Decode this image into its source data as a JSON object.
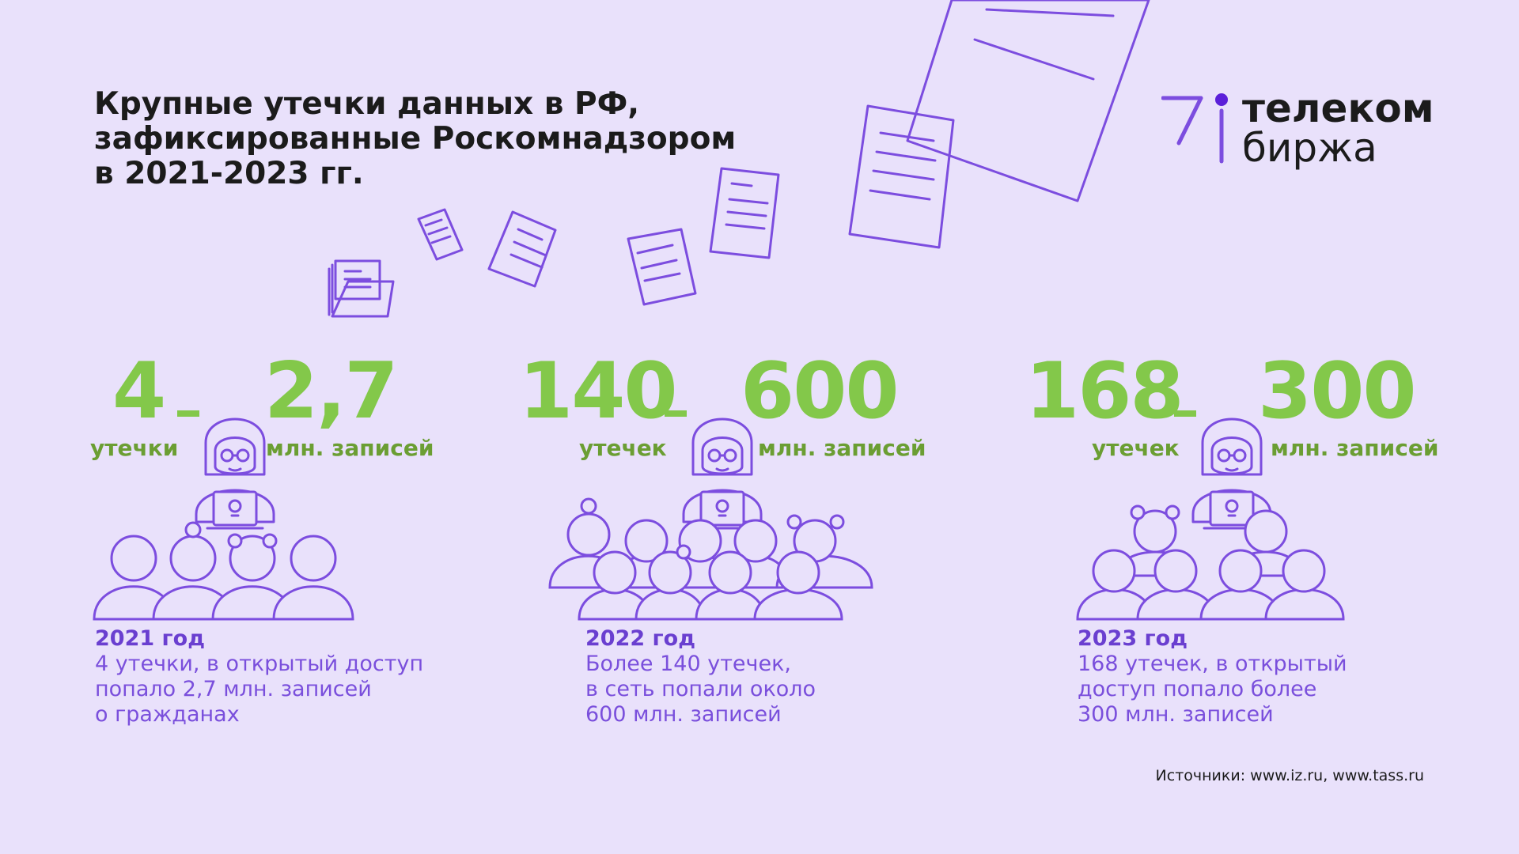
{
  "title": {
    "lines": [
      "Крупные утечки данных в РФ,",
      "зафиксированные Роскомнадзором",
      "в 2021-2023 гг."
    ]
  },
  "logo": {
    "line1": "телеком",
    "line2": "биржа",
    "colors": {
      "purple": "#7c4ddf",
      "dot": "#5b1fd9"
    }
  },
  "colors": {
    "background": "#e9e1fb",
    "green": "#83c84a",
    "purple": "#7c4ddf",
    "text": "#1b1b1b"
  },
  "stats": [
    {
      "leaks": "4",
      "leaks_unit": "утечки",
      "records": "2,7",
      "records_unit": "млн. записей",
      "year": "2021 год",
      "desc": [
        "4 утечки, в открытый доступ",
        "попало 2,7 млн. записей",
        "о гражданах"
      ]
    },
    {
      "leaks": "140",
      "leaks_unit": "утечек",
      "records": "600",
      "records_unit": "млн. записей",
      "year": "2022 год",
      "desc": [
        "Более 140 утечек,",
        "в сеть попали около",
        "600 млн. записей"
      ]
    },
    {
      "leaks": "168",
      "leaks_unit": "утечек",
      "records": "300",
      "records_unit": "млн. записей",
      "year": "2023 год",
      "desc": [
        "168 утечек, в открытый",
        "доступ попало более",
        "300 млн. записей"
      ]
    }
  ],
  "source": "Источники: www.iz.ru, www.tass.ru",
  "icons": [
    "hacker-icon",
    "people-crowd-icon",
    "document-icon",
    "folder-icon",
    "logo-mark-icon"
  ]
}
